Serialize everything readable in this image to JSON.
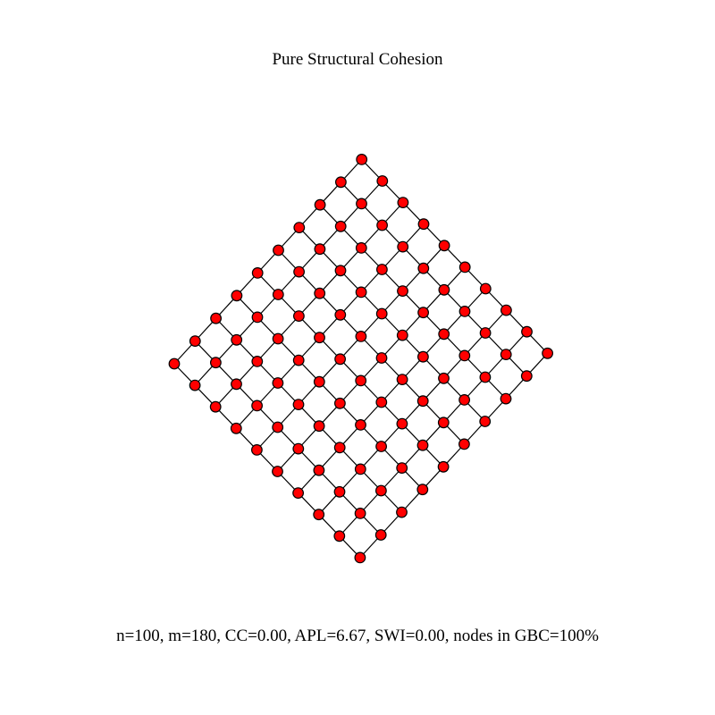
{
  "title": "Pure Structural Cohesion",
  "caption": "n=100, m=180, CC=0.00, APL=6.67, SWI=0.00, nodes in GBC=100%",
  "graph": {
    "type": "lattice",
    "rows": 10,
    "cols": 10,
    "node_count": 100,
    "edge_count": 180,
    "node_color": "#ff0000",
    "node_stroke": "#000000",
    "edge_color": "#000000"
  }
}
